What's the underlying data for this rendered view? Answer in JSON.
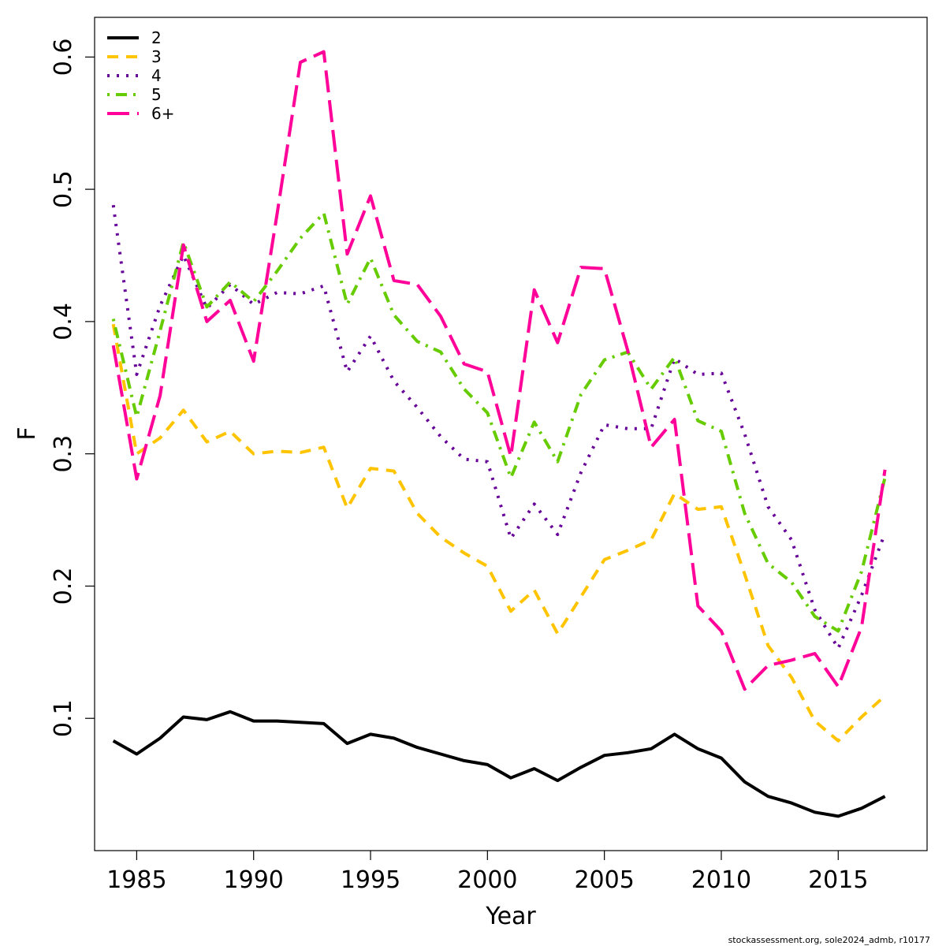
{
  "chart_data": {
    "type": "line",
    "title": "",
    "xlabel": "Year",
    "ylabel": "F",
    "xlim": [
      1983.2,
      2018.8
    ],
    "ylim": [
      0.0,
      0.63
    ],
    "x_ticks": [
      1985,
      1990,
      1995,
      2000,
      2005,
      2010,
      2015
    ],
    "y_ticks": [
      0.1,
      0.2,
      0.3,
      0.4,
      0.5,
      0.6
    ],
    "x_tick_labels": [
      "1985",
      "1990",
      "1995",
      "2000",
      "2005",
      "2010",
      "2015"
    ],
    "y_tick_labels": [
      "0.1",
      "0.2",
      "0.3",
      "0.4",
      "0.5",
      "0.6"
    ],
    "grid": false,
    "legend_position": "top-left",
    "x": [
      1984,
      1985,
      1986,
      1987,
      1988,
      1989,
      1990,
      1991,
      1992,
      1993,
      1994,
      1995,
      1996,
      1997,
      1998,
      1999,
      2000,
      2001,
      2002,
      2003,
      2004,
      2005,
      2006,
      2007,
      2008,
      2009,
      2010,
      2011,
      2012,
      2013,
      2014,
      2015,
      2016,
      2017
    ],
    "series": [
      {
        "name": "2",
        "color": "#000000",
        "style": "solid",
        "values": [
          0.083,
          0.073,
          0.085,
          0.101,
          0.099,
          0.105,
          0.098,
          0.098,
          0.097,
          0.096,
          0.081,
          0.088,
          0.085,
          0.078,
          0.073,
          0.068,
          0.065,
          0.055,
          0.062,
          0.053,
          0.063,
          0.072,
          0.074,
          0.077,
          0.088,
          0.077,
          0.07,
          0.052,
          0.041,
          0.036,
          0.029,
          0.026,
          0.032,
          0.041
        ]
      },
      {
        "name": "3",
        "color": "#FFC400",
        "style": "dashed",
        "values": [
          0.398,
          0.3,
          0.312,
          0.333,
          0.309,
          0.317,
          0.3,
          0.302,
          0.301,
          0.305,
          0.259,
          0.289,
          0.287,
          0.255,
          0.237,
          0.225,
          0.215,
          0.181,
          0.197,
          0.164,
          0.192,
          0.22,
          0.227,
          0.235,
          0.27,
          0.258,
          0.26,
          0.209,
          0.155,
          0.131,
          0.098,
          0.083,
          0.101,
          0.117
        ]
      },
      {
        "name": "4",
        "color": "#660099",
        "style": "dotted",
        "values": [
          0.488,
          0.36,
          0.412,
          0.45,
          0.41,
          0.428,
          0.413,
          0.422,
          0.421,
          0.427,
          0.362,
          0.389,
          0.355,
          0.335,
          0.313,
          0.296,
          0.294,
          0.236,
          0.262,
          0.239,
          0.286,
          0.322,
          0.319,
          0.319,
          0.372,
          0.36,
          0.361,
          0.315,
          0.26,
          0.235,
          0.182,
          0.153,
          0.193,
          0.24
        ]
      },
      {
        "name": "5",
        "color": "#66CC00",
        "style": "dotdash",
        "values": [
          0.402,
          0.328,
          0.393,
          0.46,
          0.411,
          0.43,
          0.415,
          0.438,
          0.463,
          0.482,
          0.413,
          0.448,
          0.405,
          0.385,
          0.377,
          0.349,
          0.331,
          0.282,
          0.324,
          0.294,
          0.345,
          0.371,
          0.377,
          0.349,
          0.373,
          0.325,
          0.317,
          0.255,
          0.217,
          0.203,
          0.177,
          0.166,
          0.211,
          0.282
        ]
      },
      {
        "name": "6+",
        "color": "#FF0099",
        "style": "longdash",
        "values": [
          0.382,
          0.281,
          0.344,
          0.458,
          0.4,
          0.416,
          0.37,
          0.481,
          0.596,
          0.604,
          0.451,
          0.495,
          0.431,
          0.428,
          0.404,
          0.368,
          0.362,
          0.298,
          0.424,
          0.384,
          0.441,
          0.44,
          0.378,
          0.305,
          0.326,
          0.185,
          0.166,
          0.122,
          0.14,
          0.144,
          0.149,
          0.124,
          0.169,
          0.288
        ]
      }
    ]
  },
  "footer": {
    "note": "stockassessment.org, sole2024_admb, r10177"
  }
}
